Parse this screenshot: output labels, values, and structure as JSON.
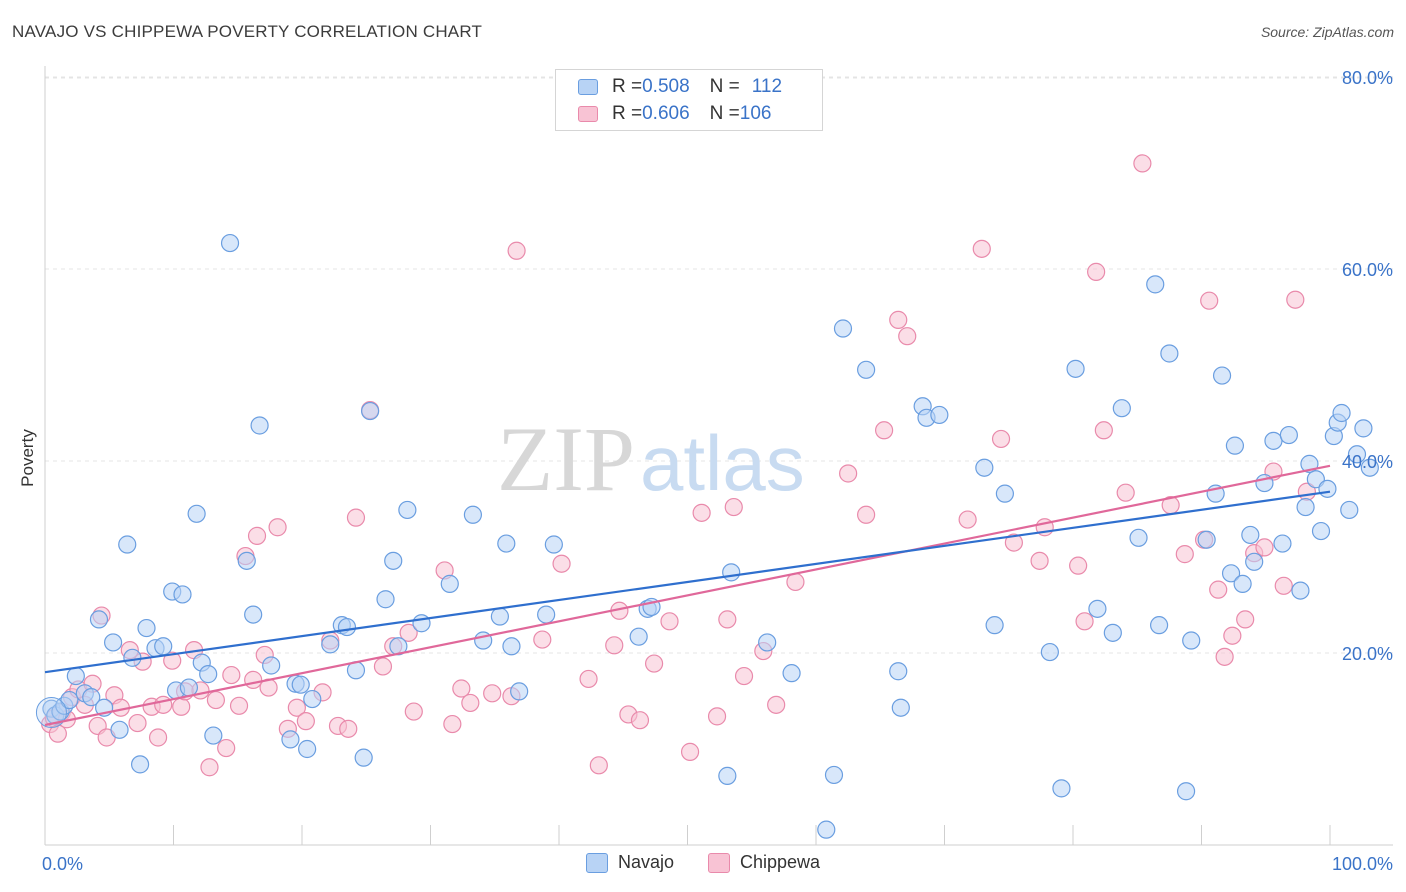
{
  "title": "NAVAJO VS CHIPPEWA POVERTY CORRELATION CHART",
  "source": "Source: ZipAtlas.com",
  "watermark": {
    "zip": "ZIP",
    "atlas": "atlas"
  },
  "legend": {
    "rows": [
      {
        "r_label": "R = ",
        "r_value": "0.508",
        "n_label": "N = ",
        "n_value": "112"
      },
      {
        "r_label": "R = ",
        "r_value": "0.606",
        "n_label": "N = ",
        "n_value": "106"
      }
    ]
  },
  "colors": {
    "navajo_fill": "#b8d3f5",
    "navajo_stroke": "#6a9ee0",
    "navajo_line": "#2f6fce",
    "chippewa_fill": "#f8c3d4",
    "chippewa_stroke": "#e98aab",
    "chippewa_line": "#e0689a",
    "tick_label": "#3a73c8",
    "grid": "#e4e4e4"
  },
  "chart_data": {
    "type": "scatter",
    "xlabel": "",
    "ylabel": "Poverty",
    "xlim": [
      0,
      100
    ],
    "ylim": [
      0,
      85
    ],
    "x_tick_labels": [
      {
        "value": 0,
        "label": "0.0%"
      },
      {
        "value": 100,
        "label": "100.0%"
      }
    ],
    "y_tick_labels": [
      {
        "value": 20,
        "label": "20.0%"
      },
      {
        "value": 40,
        "label": "40.0%"
      },
      {
        "value": 60,
        "label": "60.0%"
      },
      {
        "value": 80,
        "label": "80.0%"
      }
    ],
    "grid": true,
    "legend_position": "top-center",
    "series": [
      {
        "name": "Navajo",
        "trend": {
          "x": [
            0,
            100
          ],
          "y": [
            18.0,
            36.8
          ]
        },
        "points": [
          [
            0.5,
            14.2
          ],
          [
            0.8,
            13.5
          ],
          [
            1.2,
            13.9
          ],
          [
            1.5,
            14.5
          ],
          [
            1.9,
            15.1
          ],
          [
            2.4,
            17.6
          ],
          [
            3.1,
            15.8
          ],
          [
            3.6,
            15.4
          ],
          [
            4.2,
            23.5
          ],
          [
            4.6,
            14.3
          ],
          [
            5.3,
            21.1
          ],
          [
            5.8,
            12.0
          ],
          [
            6.4,
            31.3
          ],
          [
            6.8,
            19.5
          ],
          [
            7.4,
            8.4
          ],
          [
            7.9,
            22.6
          ],
          [
            8.6,
            20.5
          ],
          [
            9.2,
            20.7
          ],
          [
            9.9,
            26.4
          ],
          [
            10.2,
            16.1
          ],
          [
            10.7,
            26.1
          ],
          [
            11.2,
            16.4
          ],
          [
            11.8,
            34.5
          ],
          [
            12.2,
            19.0
          ],
          [
            12.7,
            17.8
          ],
          [
            13.1,
            11.4
          ],
          [
            14.4,
            62.7
          ],
          [
            15.7,
            29.6
          ],
          [
            16.2,
            24.0
          ],
          [
            16.7,
            43.7
          ],
          [
            17.6,
            18.7
          ],
          [
            19.1,
            11.0
          ],
          [
            19.5,
            16.8
          ],
          [
            19.9,
            16.7
          ],
          [
            20.4,
            10.0
          ],
          [
            20.8,
            15.2
          ],
          [
            22.2,
            20.9
          ],
          [
            23.1,
            22.9
          ],
          [
            23.5,
            22.7
          ],
          [
            24.2,
            18.2
          ],
          [
            24.8,
            9.1
          ],
          [
            25.3,
            45.2
          ],
          [
            26.5,
            25.6
          ],
          [
            27.1,
            29.6
          ],
          [
            27.5,
            20.7
          ],
          [
            28.2,
            34.9
          ],
          [
            29.3,
            23.1
          ],
          [
            31.5,
            27.2
          ],
          [
            33.3,
            34.4
          ],
          [
            34.1,
            21.3
          ],
          [
            35.4,
            23.8
          ],
          [
            35.9,
            31.4
          ],
          [
            36.3,
            20.7
          ],
          [
            36.9,
            16.0
          ],
          [
            39.0,
            24.0
          ],
          [
            39.6,
            31.3
          ],
          [
            46.2,
            21.7
          ],
          [
            46.9,
            24.6
          ],
          [
            47.2,
            24.8
          ],
          [
            53.1,
            7.2
          ],
          [
            53.4,
            28.4
          ],
          [
            56.2,
            21.1
          ],
          [
            58.1,
            17.9
          ],
          [
            60.8,
            1.6
          ],
          [
            61.4,
            7.3
          ],
          [
            62.1,
            53.8
          ],
          [
            63.9,
            49.5
          ],
          [
            66.4,
            18.1
          ],
          [
            66.6,
            14.3
          ],
          [
            68.3,
            45.7
          ],
          [
            68.6,
            44.5
          ],
          [
            69.6,
            44.8
          ],
          [
            73.1,
            39.3
          ],
          [
            73.9,
            22.9
          ],
          [
            74.7,
            36.6
          ],
          [
            78.2,
            20.1
          ],
          [
            79.1,
            5.9
          ],
          [
            80.2,
            49.6
          ],
          [
            81.9,
            24.6
          ],
          [
            83.1,
            22.1
          ],
          [
            83.8,
            45.5
          ],
          [
            85.1,
            32.0
          ],
          [
            86.4,
            58.4
          ],
          [
            86.7,
            22.9
          ],
          [
            87.5,
            51.2
          ],
          [
            88.8,
            5.6
          ],
          [
            89.2,
            21.3
          ],
          [
            90.4,
            31.8
          ],
          [
            91.1,
            36.6
          ],
          [
            91.6,
            48.9
          ],
          [
            92.3,
            28.3
          ],
          [
            92.6,
            41.6
          ],
          [
            93.2,
            27.2
          ],
          [
            93.8,
            32.3
          ],
          [
            94.1,
            29.5
          ],
          [
            94.9,
            37.7
          ],
          [
            95.6,
            42.1
          ],
          [
            96.3,
            31.4
          ],
          [
            96.8,
            42.7
          ],
          [
            97.7,
            26.5
          ],
          [
            98.1,
            35.2
          ],
          [
            98.4,
            39.7
          ],
          [
            98.9,
            38.1
          ],
          [
            99.3,
            32.7
          ],
          [
            99.8,
            37.1
          ],
          [
            100.3,
            42.6
          ],
          [
            100.6,
            44.0
          ],
          [
            100.9,
            45.0
          ],
          [
            101.5,
            34.9
          ],
          [
            102.1,
            40.7
          ],
          [
            102.6,
            43.4
          ],
          [
            103.1,
            39.3
          ]
        ]
      },
      {
        "name": "Chippewa",
        "trend": {
          "x": [
            0,
            100
          ],
          "y": [
            12.5,
            39.5
          ]
        },
        "points": [
          [
            0.4,
            12.6
          ],
          [
            0.7,
            13.2
          ],
          [
            1.0,
            11.6
          ],
          [
            1.3,
            13.8
          ],
          [
            1.7,
            13.1
          ],
          [
            2.1,
            15.4
          ],
          [
            2.6,
            16.2
          ],
          [
            3.1,
            14.6
          ],
          [
            3.7,
            16.8
          ],
          [
            4.1,
            12.4
          ],
          [
            4.4,
            23.9
          ],
          [
            4.8,
            11.2
          ],
          [
            5.4,
            15.6
          ],
          [
            5.9,
            14.3
          ],
          [
            6.6,
            20.3
          ],
          [
            7.2,
            12.7
          ],
          [
            7.6,
            19.1
          ],
          [
            8.3,
            14.4
          ],
          [
            8.8,
            11.2
          ],
          [
            9.2,
            14.6
          ],
          [
            9.9,
            19.2
          ],
          [
            10.6,
            14.4
          ],
          [
            10.9,
            16.0
          ],
          [
            11.6,
            20.3
          ],
          [
            12.1,
            16.1
          ],
          [
            12.8,
            8.1
          ],
          [
            13.3,
            15.1
          ],
          [
            14.1,
            10.1
          ],
          [
            14.5,
            17.7
          ],
          [
            15.1,
            14.5
          ],
          [
            15.6,
            30.1
          ],
          [
            16.2,
            17.2
          ],
          [
            16.5,
            32.2
          ],
          [
            17.1,
            19.8
          ],
          [
            17.4,
            16.4
          ],
          [
            18.1,
            33.1
          ],
          [
            18.9,
            12.1
          ],
          [
            19.6,
            14.3
          ],
          [
            20.3,
            12.9
          ],
          [
            21.6,
            15.9
          ],
          [
            22.2,
            21.3
          ],
          [
            22.8,
            12.4
          ],
          [
            23.6,
            12.1
          ],
          [
            24.2,
            34.1
          ],
          [
            25.3,
            45.3
          ],
          [
            26.3,
            18.6
          ],
          [
            27.1,
            20.7
          ],
          [
            28.3,
            22.1
          ],
          [
            28.7,
            13.9
          ],
          [
            31.1,
            28.6
          ],
          [
            31.7,
            12.6
          ],
          [
            32.4,
            16.3
          ],
          [
            33.1,
            14.8
          ],
          [
            34.8,
            15.8
          ],
          [
            36.3,
            15.5
          ],
          [
            36.7,
            61.9
          ],
          [
            38.7,
            21.4
          ],
          [
            40.2,
            29.3
          ],
          [
            42.3,
            17.3
          ],
          [
            43.1,
            8.3
          ],
          [
            44.3,
            20.8
          ],
          [
            44.7,
            24.4
          ],
          [
            45.4,
            13.6
          ],
          [
            46.3,
            13.0
          ],
          [
            47.4,
            18.9
          ],
          [
            48.6,
            23.3
          ],
          [
            50.2,
            9.7
          ],
          [
            51.1,
            34.6
          ],
          [
            52.3,
            13.4
          ],
          [
            53.1,
            23.5
          ],
          [
            53.6,
            35.2
          ],
          [
            54.4,
            17.6
          ],
          [
            55.9,
            20.2
          ],
          [
            56.9,
            14.6
          ],
          [
            58.4,
            27.4
          ],
          [
            62.5,
            38.7
          ],
          [
            63.9,
            34.4
          ],
          [
            65.3,
            43.2
          ],
          [
            66.4,
            54.7
          ],
          [
            67.1,
            53.0
          ],
          [
            71.8,
            33.9
          ],
          [
            72.9,
            62.1
          ],
          [
            74.4,
            42.3
          ],
          [
            75.4,
            31.5
          ],
          [
            77.4,
            29.6
          ],
          [
            77.8,
            33.1
          ],
          [
            80.4,
            29.1
          ],
          [
            80.9,
            23.3
          ],
          [
            81.8,
            59.7
          ],
          [
            82.4,
            43.2
          ],
          [
            84.1,
            36.7
          ],
          [
            85.4,
            71.0
          ],
          [
            87.6,
            35.4
          ],
          [
            88.7,
            30.3
          ],
          [
            90.2,
            31.8
          ],
          [
            90.6,
            56.7
          ],
          [
            91.3,
            26.6
          ],
          [
            91.8,
            19.6
          ],
          [
            92.4,
            21.8
          ],
          [
            93.4,
            23.5
          ],
          [
            94.1,
            30.4
          ],
          [
            94.9,
            31.0
          ],
          [
            95.6,
            38.9
          ],
          [
            96.4,
            27.0
          ],
          [
            97.3,
            56.8
          ],
          [
            98.2,
            36.8
          ]
        ]
      }
    ]
  },
  "bottom_legend": [
    {
      "label": "Navajo"
    },
    {
      "label": "Chippewa"
    }
  ]
}
